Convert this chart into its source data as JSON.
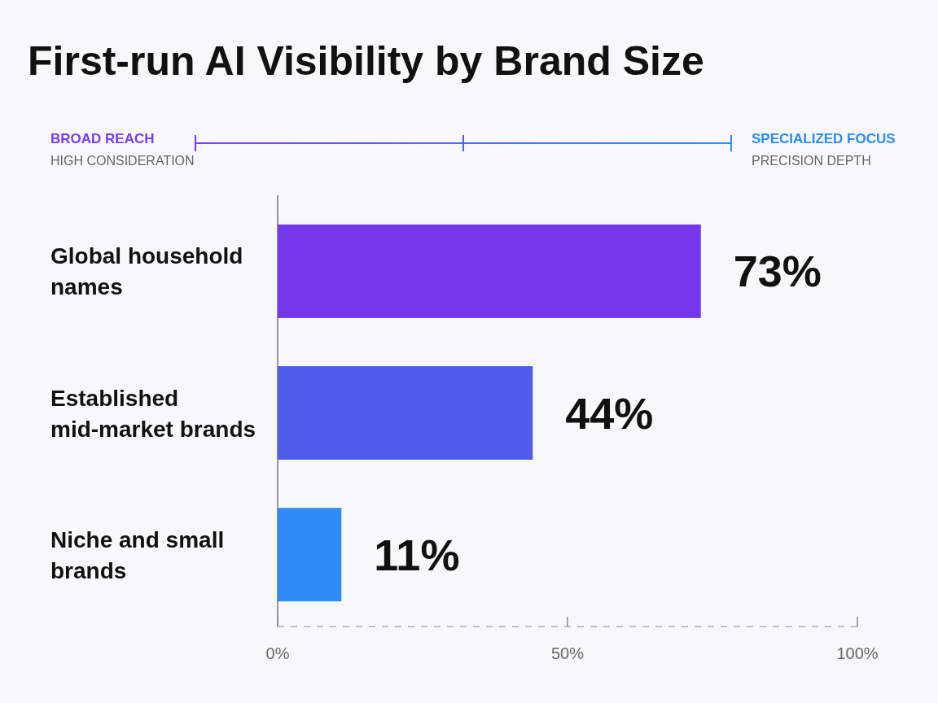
{
  "chart_data": {
    "type": "bar",
    "orientation": "horizontal",
    "title": "First-run AI Visibility by Brand Size",
    "categories": [
      "Global household names",
      "Established mid-market brands",
      "Niche and small brands"
    ],
    "values": [
      73,
      44,
      11
    ],
    "colors": [
      "#7336ec",
      "#4f5ceb",
      "#2d8cf7"
    ],
    "xlim": [
      0,
      100
    ],
    "xticks": [
      {
        "value": 0,
        "label": "0%"
      },
      {
        "value": 50,
        "label": "50%"
      },
      {
        "value": 100,
        "label": "100%"
      }
    ],
    "data_labels": true,
    "value_labels": [
      "73%",
      "44%",
      "11%"
    ],
    "grid": false,
    "annotations": [
      "BROAD REACH",
      "HIGH CONSIDERATION",
      "SPECIALIZED FOCUS",
      "PRECISION DEPTH"
    ]
  }
}
